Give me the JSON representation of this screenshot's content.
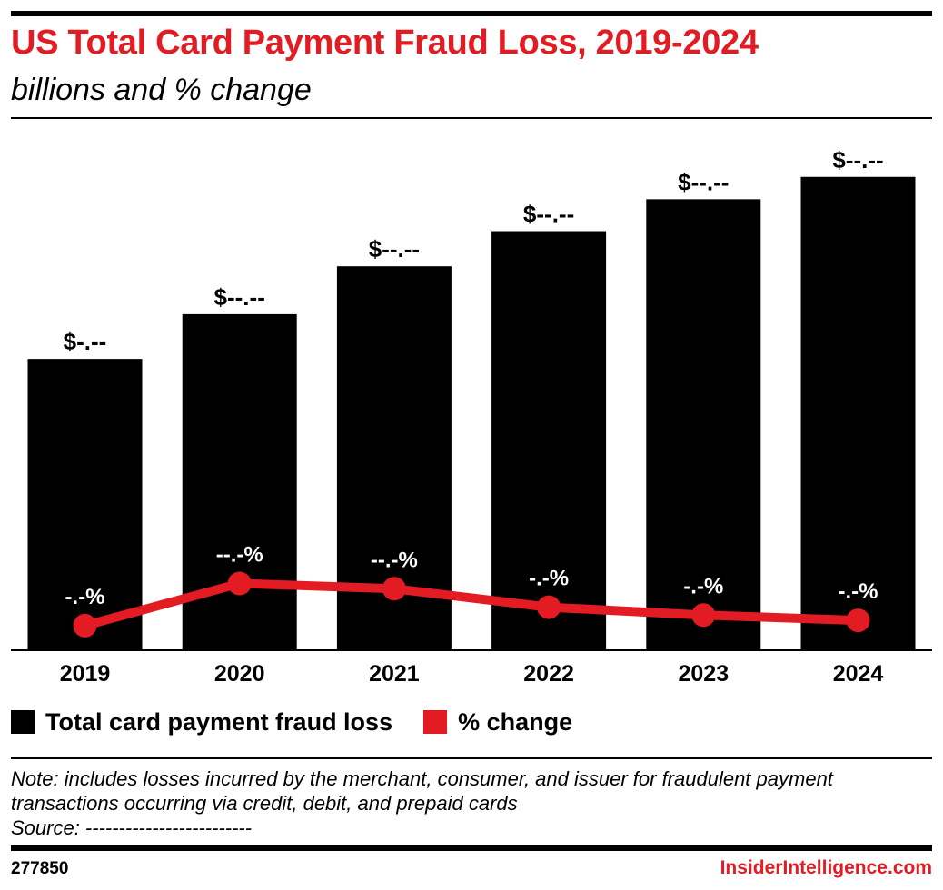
{
  "header": {
    "title": "US Total Card Payment Fraud Loss, 2019-2024",
    "subtitle": "billions and % change"
  },
  "colors": {
    "bar": "#000000",
    "line": "#e31b23",
    "accent": "#e31b23"
  },
  "legend": {
    "items": [
      {
        "label": "Total card payment fraud loss",
        "color": "#000000"
      },
      {
        "label": "% change",
        "color": "#e31b23"
      }
    ]
  },
  "chart_data": {
    "type": "bar",
    "title": "US Total Card Payment Fraud Loss, 2019-2024",
    "subtitle": "billions and % change",
    "categories": [
      "2019",
      "2020",
      "2021",
      "2022",
      "2023",
      "2024"
    ],
    "series": [
      {
        "name": "Total card payment fraud loss",
        "type": "bar",
        "values": [
          9.1,
          10.5,
          12.0,
          13.1,
          14.1,
          14.8
        ],
        "labels": [
          "$-.--",
          "$--.--",
          "$--.--",
          "$--.--",
          "$--.--",
          "$--.--"
        ]
      },
      {
        "name": "% change",
        "type": "line",
        "values": [
          0.9,
          2.5,
          2.3,
          1.6,
          1.3,
          1.1
        ],
        "labels": [
          "-.-%",
          "--.-%",
          "--.-%",
          "-.-%",
          "-.-%",
          "-.-%"
        ]
      }
    ],
    "bar_ylim": [
      0,
      16.5
    ],
    "line_ylim": [
      0,
      20
    ],
    "grid": false,
    "legend_position": "bottom-left"
  },
  "notes": {
    "line1": "Note: includes losses incurred by the merchant, consumer, and issuer for fraudulent payment",
    "line2": "transactions occurring via credit, debit, and prepaid cards",
    "source": "Source: -------------------------"
  },
  "footer": {
    "id": "277850",
    "brand": "InsiderIntelligence.com"
  }
}
